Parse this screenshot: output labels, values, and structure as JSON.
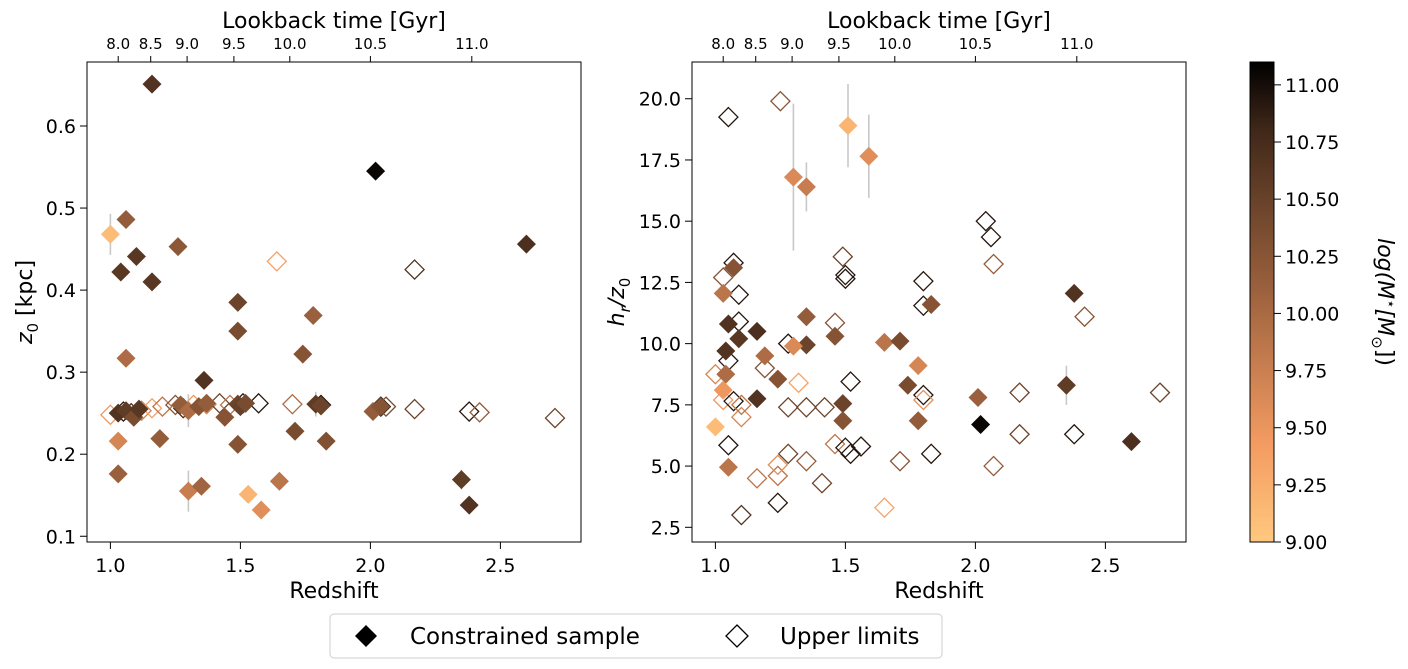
{
  "chart_data": [
    {
      "type": "scatter",
      "top_axis_label": "Lookback time [Gyr]",
      "top_ticks": [
        "8.0",
        "8.5",
        "9.0",
        "9.5",
        "10.0",
        "10.5",
        "11.0"
      ],
      "top_ticks_z": [
        1.03,
        1.155,
        1.295,
        1.475,
        1.69,
        2.0,
        2.39
      ],
      "xlabel": "Redshift",
      "ylabel": "z_0 [kpc]",
      "xlim": [
        0.91,
        2.81
      ],
      "ylim": [
        0.093,
        0.678
      ],
      "xticks": [
        "1.0",
        "1.5",
        "2.0",
        "2.5"
      ],
      "yticks": [
        "0.1",
        "0.2",
        "0.3",
        "0.4",
        "0.5",
        "0.6"
      ],
      "constrained": [
        {
          "z": 1.16,
          "y": 0.651,
          "m": 10.6
        },
        {
          "z": 2.02,
          "y": 0.545,
          "m": 11.05
        },
        {
          "z": 2.6,
          "y": 0.456,
          "m": 10.65
        },
        {
          "z": 1.0,
          "y": 0.468,
          "m": 9.1,
          "err": 0.025
        },
        {
          "z": 1.06,
          "y": 0.486,
          "m": 10.1
        },
        {
          "z": 1.1,
          "y": 0.441,
          "m": 10.55
        },
        {
          "z": 1.26,
          "y": 0.453,
          "m": 10.15
        },
        {
          "z": 1.04,
          "y": 0.422,
          "m": 10.55
        },
        {
          "z": 1.16,
          "y": 0.41,
          "m": 10.55
        },
        {
          "z": 1.49,
          "y": 0.385,
          "m": 10.4
        },
        {
          "z": 1.49,
          "y": 0.35,
          "m": 10.3
        },
        {
          "z": 1.78,
          "y": 0.369,
          "m": 10.05
        },
        {
          "z": 1.74,
          "y": 0.322,
          "m": 10.2
        },
        {
          "z": 1.06,
          "y": 0.317,
          "m": 9.9
        },
        {
          "z": 1.36,
          "y": 0.29,
          "m": 10.6
        },
        {
          "z": 1.03,
          "y": 0.25,
          "m": 10.6
        },
        {
          "z": 1.06,
          "y": 0.253,
          "m": 10.5
        },
        {
          "z": 1.09,
          "y": 0.245,
          "m": 10.3
        },
        {
          "z": 1.11,
          "y": 0.255,
          "m": 10.55
        },
        {
          "z": 1.27,
          "y": 0.26,
          "m": 10.1
        },
        {
          "z": 1.3,
          "y": 0.253,
          "m": 9.9,
          "err": 0.02
        },
        {
          "z": 1.34,
          "y": 0.258,
          "m": 10.2
        },
        {
          "z": 1.37,
          "y": 0.262,
          "m": 10.1
        },
        {
          "z": 1.44,
          "y": 0.245,
          "m": 10.2
        },
        {
          "z": 1.49,
          "y": 0.261,
          "m": 10.4
        },
        {
          "z": 1.5,
          "y": 0.258,
          "m": 10.45
        },
        {
          "z": 1.52,
          "y": 0.262,
          "m": 10.3
        },
        {
          "z": 1.79,
          "y": 0.261,
          "m": 10.5,
          "err": 0.015
        },
        {
          "z": 1.81,
          "y": 0.259,
          "m": 10.4
        },
        {
          "z": 2.01,
          "y": 0.252,
          "m": 10.1
        },
        {
          "z": 2.04,
          "y": 0.258,
          "m": 10.2
        },
        {
          "z": 1.03,
          "y": 0.216,
          "m": 9.6
        },
        {
          "z": 1.19,
          "y": 0.219,
          "m": 10.1
        },
        {
          "z": 1.49,
          "y": 0.212,
          "m": 10.2
        },
        {
          "z": 1.71,
          "y": 0.228,
          "m": 10.3
        },
        {
          "z": 1.83,
          "y": 0.216,
          "m": 10.25
        },
        {
          "z": 1.03,
          "y": 0.176,
          "m": 10.05
        },
        {
          "z": 1.3,
          "y": 0.155,
          "m": 9.7,
          "err": 0.025
        },
        {
          "z": 1.35,
          "y": 0.161,
          "m": 10.0
        },
        {
          "z": 1.53,
          "y": 0.151,
          "m": 9.15
        },
        {
          "z": 1.58,
          "y": 0.132,
          "m": 9.5
        },
        {
          "z": 1.65,
          "y": 0.167,
          "m": 9.8
        },
        {
          "z": 2.35,
          "y": 0.169,
          "m": 10.5,
          "err": 0.012
        },
        {
          "z": 2.38,
          "y": 0.138,
          "m": 10.6
        }
      ],
      "upper_limits": [
        {
          "z": 1.64,
          "y": 0.435,
          "m": 9.3
        },
        {
          "z": 2.17,
          "y": 0.425,
          "m": 10.6
        },
        {
          "z": 1.0,
          "y": 0.248,
          "m": 9.4
        },
        {
          "z": 1.05,
          "y": 0.252,
          "m": 10.9
        },
        {
          "z": 1.08,
          "y": 0.25,
          "m": 10.7
        },
        {
          "z": 1.12,
          "y": 0.253,
          "m": 9.6
        },
        {
          "z": 1.16,
          "y": 0.256,
          "m": 9.3
        },
        {
          "z": 1.2,
          "y": 0.258,
          "m": 9.8
        },
        {
          "z": 1.25,
          "y": 0.26,
          "m": 10.2
        },
        {
          "z": 1.28,
          "y": 0.256,
          "m": 10.7
        },
        {
          "z": 1.32,
          "y": 0.26,
          "m": 9.4
        },
        {
          "z": 1.37,
          "y": 0.261,
          "m": 9.6
        },
        {
          "z": 1.42,
          "y": 0.262,
          "m": 10.4
        },
        {
          "z": 1.46,
          "y": 0.26,
          "m": 9.8
        },
        {
          "z": 1.51,
          "y": 0.262,
          "m": 10.9
        },
        {
          "z": 1.57,
          "y": 0.262,
          "m": 10.9
        },
        {
          "z": 1.7,
          "y": 0.261,
          "m": 9.9
        },
        {
          "z": 1.81,
          "y": 0.26,
          "m": 10.9
        },
        {
          "z": 2.04,
          "y": 0.258,
          "m": 10.9
        },
        {
          "z": 2.06,
          "y": 0.258,
          "m": 10.3
        },
        {
          "z": 2.17,
          "y": 0.255,
          "m": 10.4
        },
        {
          "z": 2.38,
          "y": 0.252,
          "m": 10.9
        },
        {
          "z": 2.42,
          "y": 0.251,
          "m": 10.1
        },
        {
          "z": 2.71,
          "y": 0.244,
          "m": 10.4
        }
      ]
    },
    {
      "type": "scatter",
      "top_axis_label": "Lookback time [Gyr]",
      "top_ticks": [
        "8.0",
        "8.5",
        "9.0",
        "9.5",
        "10.0",
        "10.5",
        "11.0"
      ],
      "top_ticks_z": [
        1.03,
        1.155,
        1.295,
        1.475,
        1.69,
        2.0,
        2.39
      ],
      "xlabel": "Redshift",
      "ylabel": "h_r/z_0",
      "xlim": [
        0.91,
        2.81
      ],
      "ylim": [
        1.9,
        21.5
      ],
      "xticks": [
        "1.0",
        "1.5",
        "2.0",
        "2.5"
      ],
      "yticks": [
        "2.5",
        "5.0",
        "7.5",
        "10.0",
        "12.5",
        "15.0",
        "17.5",
        "20.0"
      ],
      "constrained": [
        {
          "z": 1.51,
          "y": 18.9,
          "m": 9.15,
          "err": 1.7
        },
        {
          "z": 1.59,
          "y": 17.65,
          "m": 9.5,
          "err": 1.7
        },
        {
          "z": 1.3,
          "y": 16.8,
          "m": 9.55,
          "err": 3.0
        },
        {
          "z": 1.35,
          "y": 16.4,
          "m": 9.7,
          "err": 1.0
        },
        {
          "z": 1.03,
          "y": 12.05,
          "m": 9.8
        },
        {
          "z": 1.07,
          "y": 13.1,
          "m": 10.2
        },
        {
          "z": 1.05,
          "y": 10.8,
          "m": 10.6
        },
        {
          "z": 1.09,
          "y": 10.2,
          "m": 10.55
        },
        {
          "z": 1.16,
          "y": 10.5,
          "m": 10.65
        },
        {
          "z": 1.04,
          "y": 9.7,
          "m": 10.6
        },
        {
          "z": 1.35,
          "y": 11.1,
          "m": 10.1
        },
        {
          "z": 1.35,
          "y": 9.95,
          "m": 10.4
        },
        {
          "z": 1.3,
          "y": 9.9,
          "m": 9.55
        },
        {
          "z": 1.19,
          "y": 9.5,
          "m": 9.9
        },
        {
          "z": 1.46,
          "y": 10.3,
          "m": 10.2
        },
        {
          "z": 1.65,
          "y": 10.05,
          "m": 9.8
        },
        {
          "z": 1.71,
          "y": 10.1,
          "m": 10.3
        },
        {
          "z": 1.78,
          "y": 9.1,
          "m": 9.6
        },
        {
          "z": 1.83,
          "y": 11.6,
          "m": 10.2
        },
        {
          "z": 1.04,
          "y": 8.75,
          "m": 9.9
        },
        {
          "z": 1.03,
          "y": 8.1,
          "m": 9.4
        },
        {
          "z": 1.24,
          "y": 8.55,
          "m": 10.2
        },
        {
          "z": 1.16,
          "y": 7.75,
          "m": 10.6
        },
        {
          "z": 1.49,
          "y": 7.55,
          "m": 10.4
        },
        {
          "z": 1.49,
          "y": 6.85,
          "m": 10.2
        },
        {
          "z": 1.74,
          "y": 8.3,
          "m": 10.3
        },
        {
          "z": 1.78,
          "y": 6.85,
          "m": 10.1
        },
        {
          "z": 2.01,
          "y": 7.8,
          "m": 10.05
        },
        {
          "z": 2.35,
          "y": 8.3,
          "m": 10.5,
          "err": 0.8
        },
        {
          "z": 2.38,
          "y": 12.05,
          "m": 10.6
        },
        {
          "z": 1.0,
          "y": 6.6,
          "m": 9.1
        },
        {
          "z": 1.05,
          "y": 4.95,
          "m": 9.8
        },
        {
          "z": 2.02,
          "y": 6.7,
          "m": 11.05
        },
        {
          "z": 2.6,
          "y": 6.0,
          "m": 10.65
        }
      ],
      "upper_limits": [
        {
          "z": 1.05,
          "y": 19.25,
          "m": 10.9
        },
        {
          "z": 1.25,
          "y": 19.9,
          "m": 10.2
        },
        {
          "z": 1.03,
          "y": 12.7,
          "m": 10.2
        },
        {
          "z": 1.07,
          "y": 13.3,
          "m": 10.9
        },
        {
          "z": 1.09,
          "y": 12.0,
          "m": 10.9
        },
        {
          "z": 1.09,
          "y": 10.9,
          "m": 10.9
        },
        {
          "z": 1.05,
          "y": 9.3,
          "m": 10.9
        },
        {
          "z": 1.0,
          "y": 8.75,
          "m": 9.6
        },
        {
          "z": 1.03,
          "y": 7.7,
          "m": 9.4
        },
        {
          "z": 1.07,
          "y": 7.65,
          "m": 10.9
        },
        {
          "z": 1.1,
          "y": 7.0,
          "m": 9.6
        },
        {
          "z": 1.1,
          "y": 7.5,
          "m": 9.8
        },
        {
          "z": 1.19,
          "y": 9.0,
          "m": 10.2
        },
        {
          "z": 1.28,
          "y": 10.0,
          "m": 10.9
        },
        {
          "z": 1.32,
          "y": 8.4,
          "m": 9.3
        },
        {
          "z": 1.28,
          "y": 7.4,
          "m": 10.4
        },
        {
          "z": 1.35,
          "y": 7.4,
          "m": 10.4
        },
        {
          "z": 1.42,
          "y": 7.4,
          "m": 10.4
        },
        {
          "z": 1.46,
          "y": 10.85,
          "m": 10.2
        },
        {
          "z": 1.49,
          "y": 13.55,
          "m": 10.4
        },
        {
          "z": 1.5,
          "y": 12.8,
          "m": 10.9
        },
        {
          "z": 1.5,
          "y": 12.65,
          "m": 10.9
        },
        {
          "z": 1.52,
          "y": 8.45,
          "m": 10.9
        },
        {
          "z": 1.8,
          "y": 12.55,
          "m": 10.9
        },
        {
          "z": 1.8,
          "y": 11.55,
          "m": 10.9
        },
        {
          "z": 1.8,
          "y": 7.9,
          "m": 10.9
        },
        {
          "z": 1.8,
          "y": 7.7,
          "m": 9.5
        },
        {
          "z": 2.04,
          "y": 15.0,
          "m": 10.9
        },
        {
          "z": 2.06,
          "y": 14.35,
          "m": 10.9
        },
        {
          "z": 2.07,
          "y": 13.25,
          "m": 10.1
        },
        {
          "z": 2.42,
          "y": 11.1,
          "m": 10.2
        },
        {
          "z": 2.17,
          "y": 8.0,
          "m": 10.4
        },
        {
          "z": 2.71,
          "y": 8.0,
          "m": 10.4
        },
        {
          "z": 1.05,
          "y": 5.85,
          "m": 10.9
        },
        {
          "z": 1.16,
          "y": 4.5,
          "m": 9.8
        },
        {
          "z": 1.24,
          "y": 4.6,
          "m": 9.8
        },
        {
          "z": 1.24,
          "y": 5.05,
          "m": 9.5
        },
        {
          "z": 1.28,
          "y": 5.5,
          "m": 10.4
        },
        {
          "z": 1.35,
          "y": 5.2,
          "m": 10.1
        },
        {
          "z": 1.41,
          "y": 4.3,
          "m": 10.4
        },
        {
          "z": 1.46,
          "y": 5.9,
          "m": 9.8
        },
        {
          "z": 1.5,
          "y": 5.75,
          "m": 10.9
        },
        {
          "z": 1.52,
          "y": 5.5,
          "m": 10.9
        },
        {
          "z": 1.56,
          "y": 5.8,
          "m": 10.9
        },
        {
          "z": 1.71,
          "y": 5.2,
          "m": 10.2
        },
        {
          "z": 1.83,
          "y": 5.5,
          "m": 10.9
        },
        {
          "z": 2.07,
          "y": 5.0,
          "m": 10.1
        },
        {
          "z": 2.17,
          "y": 6.3,
          "m": 10.4
        },
        {
          "z": 2.38,
          "y": 6.3,
          "m": 10.9
        },
        {
          "z": 1.1,
          "y": 3.0,
          "m": 10.6
        },
        {
          "z": 1.24,
          "y": 3.5,
          "m": 10.9
        },
        {
          "z": 1.65,
          "y": 3.3,
          "m": 9.3
        }
      ]
    }
  ],
  "colorbar": {
    "label": "log(M_⋆[M_⊙])",
    "range": [
      9.0,
      11.1
    ],
    "ticks": [
      "9.00",
      "9.25",
      "9.50",
      "9.75",
      "10.00",
      "10.25",
      "10.50",
      "10.75",
      "11.00"
    ],
    "colormap": "copper_r",
    "stops": [
      "#ffc87f",
      "#f49c62",
      "#c77d4f",
      "#9a603d",
      "#6c442b",
      "#3f2719",
      "#000000"
    ]
  },
  "legend": {
    "entries": [
      "Constrained sample",
      "Upper limits"
    ],
    "placement": "bottom-center"
  },
  "errorbar_color": "#c8c8c8"
}
